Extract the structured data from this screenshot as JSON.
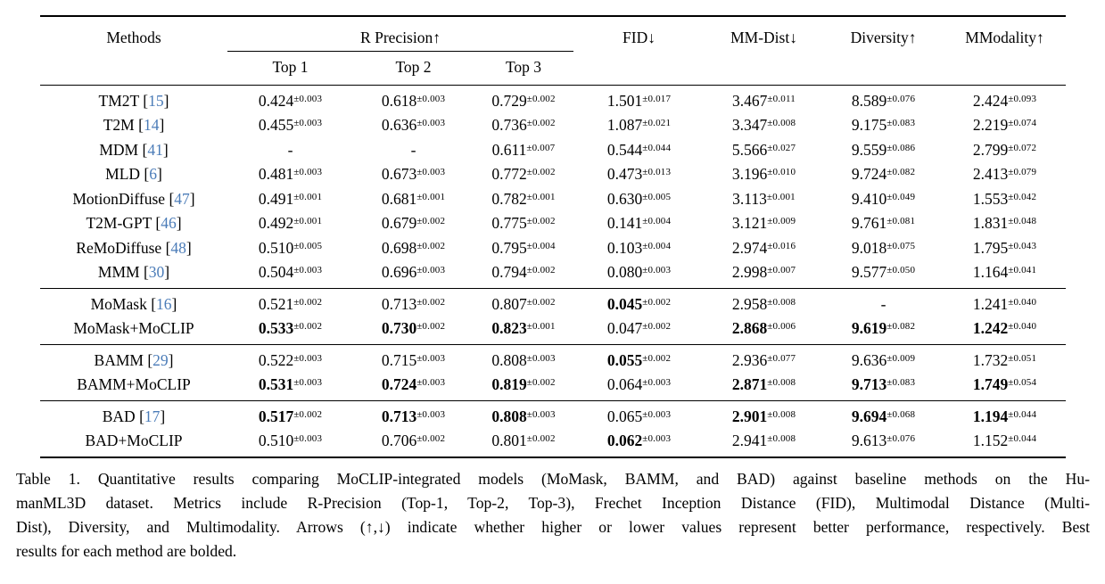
{
  "colors": {
    "cite": "#4b7cb8"
  },
  "table": {
    "cell_keys": [
      "top1",
      "top2",
      "top3",
      "fid",
      "mm_dist",
      "diversity",
      "mmodality"
    ],
    "header": {
      "methods": "Methods",
      "r_precision": "R Precision↑",
      "top1": "Top 1",
      "top2": "Top 2",
      "top3": "Top 3",
      "fid": "FID↓",
      "mm_dist": "MM-Dist↓",
      "diversity": "Diversity↑",
      "mmodality": "MModality↑"
    },
    "groups": [
      {
        "name": "baselines",
        "rows": [
          {
            "method": "TM2T",
            "cite": "15",
            "cells": [
              {
                "v": "0.424",
                "e": "±0.003",
                "b": false
              },
              {
                "v": "0.618",
                "e": "±0.003",
                "b": false
              },
              {
                "v": "0.729",
                "e": "±0.002",
                "b": false
              },
              {
                "v": "1.501",
                "e": "±0.017",
                "b": false
              },
              {
                "v": "3.467",
                "e": "±0.011",
                "b": false
              },
              {
                "v": "8.589",
                "e": "±0.076",
                "b": false
              },
              {
                "v": "2.424",
                "e": "±0.093",
                "b": false
              }
            ]
          },
          {
            "method": "T2M",
            "cite": "14",
            "cells": [
              {
                "v": "0.455",
                "e": "±0.003",
                "b": false
              },
              {
                "v": "0.636",
                "e": "±0.003",
                "b": false
              },
              {
                "v": "0.736",
                "e": "±0.002",
                "b": false
              },
              {
                "v": "1.087",
                "e": "±0.021",
                "b": false
              },
              {
                "v": "3.347",
                "e": "±0.008",
                "b": false
              },
              {
                "v": "9.175",
                "e": "±0.083",
                "b": false
              },
              {
                "v": "2.219",
                "e": "±0.074",
                "b": false
              }
            ]
          },
          {
            "method": "MDM",
            "cite": "41",
            "cells": [
              {
                "v": "-",
                "e": "",
                "b": false
              },
              {
                "v": "-",
                "e": "",
                "b": false
              },
              {
                "v": "0.611",
                "e": "±0.007",
                "b": false
              },
              {
                "v": "0.544",
                "e": "±0.044",
                "b": false
              },
              {
                "v": "5.566",
                "e": "±0.027",
                "b": false
              },
              {
                "v": "9.559",
                "e": "±0.086",
                "b": false
              },
              {
                "v": "2.799",
                "e": "±0.072",
                "b": false
              }
            ]
          },
          {
            "method": "MLD",
            "cite": "6",
            "cells": [
              {
                "v": "0.481",
                "e": "±0.003",
                "b": false
              },
              {
                "v": "0.673",
                "e": "±0.003",
                "b": false
              },
              {
                "v": "0.772",
                "e": "±0.002",
                "b": false
              },
              {
                "v": "0.473",
                "e": "±0.013",
                "b": false
              },
              {
                "v": "3.196",
                "e": "±0.010",
                "b": false
              },
              {
                "v": "9.724",
                "e": "±0.082",
                "b": false
              },
              {
                "v": "2.413",
                "e": "±0.079",
                "b": false
              }
            ]
          },
          {
            "method": "MotionDiffuse",
            "cite": "47",
            "cells": [
              {
                "v": "0.491",
                "e": "±0.001",
                "b": false
              },
              {
                "v": "0.681",
                "e": "±0.001",
                "b": false
              },
              {
                "v": "0.782",
                "e": "±0.001",
                "b": false
              },
              {
                "v": "0.630",
                "e": "±0.005",
                "b": false
              },
              {
                "v": "3.113",
                "e": "±0.001",
                "b": false
              },
              {
                "v": "9.410",
                "e": "±0.049",
                "b": false
              },
              {
                "v": "1.553",
                "e": "±0.042",
                "b": false
              }
            ]
          },
          {
            "method": "T2M-GPT",
            "cite": "46",
            "cells": [
              {
                "v": "0.492",
                "e": "±0.001",
                "b": false
              },
              {
                "v": "0.679",
                "e": "±0.002",
                "b": false
              },
              {
                "v": "0.775",
                "e": "±0.002",
                "b": false
              },
              {
                "v": "0.141",
                "e": "±0.004",
                "b": false
              },
              {
                "v": "3.121",
                "e": "±0.009",
                "b": false
              },
              {
                "v": "9.761",
                "e": "±0.081",
                "b": false
              },
              {
                "v": "1.831",
                "e": "±0.048",
                "b": false
              }
            ]
          },
          {
            "method": "ReMoDiffuse",
            "cite": "48",
            "cells": [
              {
                "v": "0.510",
                "e": "±0.005",
                "b": false
              },
              {
                "v": "0.698",
                "e": "±0.002",
                "b": false
              },
              {
                "v": "0.795",
                "e": "±0.004",
                "b": false
              },
              {
                "v": "0.103",
                "e": "±0.004",
                "b": false
              },
              {
                "v": "2.974",
                "e": "±0.016",
                "b": false
              },
              {
                "v": "9.018",
                "e": "±0.075",
                "b": false
              },
              {
                "v": "1.795",
                "e": "±0.043",
                "b": false
              }
            ]
          },
          {
            "method": "MMM",
            "cite": "30",
            "cells": [
              {
                "v": "0.504",
                "e": "±0.003",
                "b": false
              },
              {
                "v": "0.696",
                "e": "±0.003",
                "b": false
              },
              {
                "v": "0.794",
                "e": "±0.002",
                "b": false
              },
              {
                "v": "0.080",
                "e": "±0.003",
                "b": false
              },
              {
                "v": "2.998",
                "e": "±0.007",
                "b": false
              },
              {
                "v": "9.577",
                "e": "±0.050",
                "b": false
              },
              {
                "v": "1.164",
                "e": "±0.041",
                "b": false
              }
            ]
          }
        ]
      },
      {
        "name": "momask",
        "rows": [
          {
            "method": "MoMask",
            "cite": "16",
            "cells": [
              {
                "v": "0.521",
                "e": "±0.002",
                "b": false
              },
              {
                "v": "0.713",
                "e": "±0.002",
                "b": false
              },
              {
                "v": "0.807",
                "e": "±0.002",
                "b": false
              },
              {
                "v": "0.045",
                "e": "±0.002",
                "b": true
              },
              {
                "v": "2.958",
                "e": "±0.008",
                "b": false
              },
              {
                "v": "-",
                "e": "",
                "b": false
              },
              {
                "v": "1.241",
                "e": "±0.040",
                "b": false
              }
            ]
          },
          {
            "method": "MoMask+MoCLIP",
            "cite": "",
            "cells": [
              {
                "v": "0.533",
                "e": "±0.002",
                "b": true
              },
              {
                "v": "0.730",
                "e": "±0.002",
                "b": true
              },
              {
                "v": "0.823",
                "e": "±0.001",
                "b": true
              },
              {
                "v": "0.047",
                "e": "±0.002",
                "b": false
              },
              {
                "v": "2.868",
                "e": "±0.006",
                "b": true
              },
              {
                "v": "9.619",
                "e": "±0.082",
                "b": true
              },
              {
                "v": "1.242",
                "e": "±0.040",
                "b": true
              }
            ]
          }
        ]
      },
      {
        "name": "bamm",
        "rows": [
          {
            "method": "BAMM",
            "cite": "29",
            "cells": [
              {
                "v": "0.522",
                "e": "±0.003",
                "b": false
              },
              {
                "v": "0.715",
                "e": "±0.003",
                "b": false
              },
              {
                "v": "0.808",
                "e": "±0.003",
                "b": false
              },
              {
                "v": "0.055",
                "e": "±0.002",
                "b": true
              },
              {
                "v": "2.936",
                "e": "±0.077",
                "b": false
              },
              {
                "v": "9.636",
                "e": "±0.009",
                "b": false
              },
              {
                "v": "1.732",
                "e": "±0.051",
                "b": false
              }
            ]
          },
          {
            "method": "BAMM+MoCLIP",
            "cite": "",
            "cells": [
              {
                "v": "0.531",
                "e": "±0.003",
                "b": true
              },
              {
                "v": "0.724",
                "e": "±0.003",
                "b": true
              },
              {
                "v": "0.819",
                "e": "±0.002",
                "b": true
              },
              {
                "v": "0.064",
                "e": "±0.003",
                "b": false
              },
              {
                "v": "2.871",
                "e": "±0.008",
                "b": true
              },
              {
                "v": "9.713",
                "e": "±0.083",
                "b": true
              },
              {
                "v": "1.749",
                "e": "±0.054",
                "b": true
              }
            ]
          }
        ]
      },
      {
        "name": "bad",
        "rows": [
          {
            "method": "BAD",
            "cite": "17",
            "cells": [
              {
                "v": "0.517",
                "e": "±0.002",
                "b": true
              },
              {
                "v": "0.713",
                "e": "±0.003",
                "b": true
              },
              {
                "v": "0.808",
                "e": "±0.003",
                "b": true
              },
              {
                "v": "0.065",
                "e": "±0.003",
                "b": false
              },
              {
                "v": "2.901",
                "e": "±0.008",
                "b": true
              },
              {
                "v": "9.694",
                "e": "±0.068",
                "b": true
              },
              {
                "v": "1.194",
                "e": "±0.044",
                "b": true
              }
            ]
          },
          {
            "method": "BAD+MoCLIP",
            "cite": "",
            "cells": [
              {
                "v": "0.510",
                "e": "±0.003",
                "b": false
              },
              {
                "v": "0.706",
                "e": "±0.002",
                "b": false
              },
              {
                "v": "0.801",
                "e": "±0.002",
                "b": false
              },
              {
                "v": "0.062",
                "e": "±0.003",
                "b": true
              },
              {
                "v": "2.941",
                "e": "±0.008",
                "b": false
              },
              {
                "v": "9.613",
                "e": "±0.076",
                "b": false
              },
              {
                "v": "1.152",
                "e": "±0.044",
                "b": false
              }
            ]
          }
        ]
      }
    ]
  },
  "caption": {
    "lines": [
      "Table 1. Quantitative results comparing MoCLIP-integrated models (MoMask, BAMM, and BAD) against baseline methods on the Hu-",
      "manML3D dataset. Metrics include R-Precision (Top-1, Top-2, Top-3), Frechet Inception Distance (FID), Multimodal Distance (Multi-",
      "Dist), Diversity, and Multimodality. Arrows (↑,↓) indicate whether higher or lower values represent better performance, respectively. Best",
      "results for each method are bolded."
    ]
  }
}
